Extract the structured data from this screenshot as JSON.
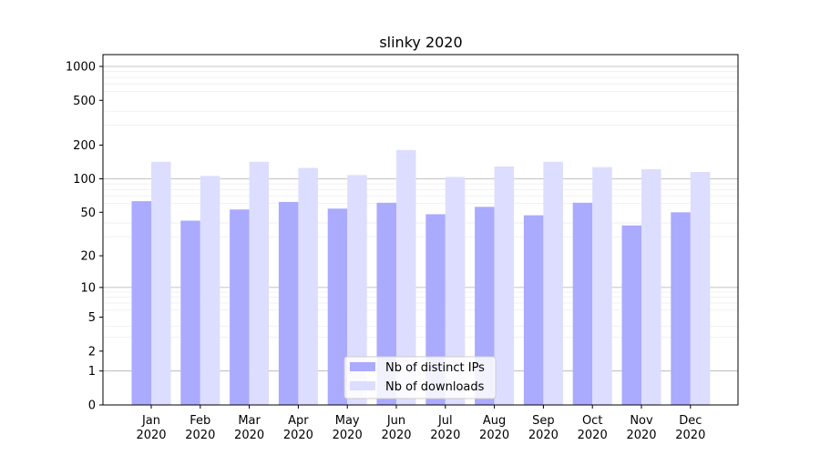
{
  "chart_data": {
    "type": "bar",
    "title": "slinky 2020",
    "xlabel": "",
    "ylabel": "",
    "y_scale": "log(1+y)",
    "ylim": [
      0,
      1000
    ],
    "y_ticks": [
      0,
      1,
      2,
      5,
      10,
      20,
      50,
      100,
      200,
      500,
      1000
    ],
    "y_tick_labels": [
      "0",
      "1",
      "2",
      "5",
      "10",
      "20",
      "50",
      "100",
      "200",
      "500",
      "1000"
    ],
    "grid": true,
    "legend_position": "bottom-center",
    "categories": [
      [
        "Jan",
        "2020"
      ],
      [
        "Feb",
        "2020"
      ],
      [
        "Mar",
        "2020"
      ],
      [
        "Apr",
        "2020"
      ],
      [
        "May",
        "2020"
      ],
      [
        "Jun",
        "2020"
      ],
      [
        "Jul",
        "2020"
      ],
      [
        "Aug",
        "2020"
      ],
      [
        "Sep",
        "2020"
      ],
      [
        "Oct",
        "2020"
      ],
      [
        "Nov",
        "2020"
      ],
      [
        "Dec",
        "2020"
      ]
    ],
    "series": [
      {
        "name": "Nb of distinct IPs",
        "color": "#aaaaff",
        "values": [
          63,
          42,
          53,
          62,
          54,
          61,
          48,
          56,
          47,
          61,
          38,
          50
        ]
      },
      {
        "name": "Nb of downloads",
        "color": "#ddddff",
        "values": [
          142,
          106,
          142,
          125,
          108,
          181,
          104,
          129,
          142,
          127,
          122,
          115
        ]
      }
    ]
  }
}
